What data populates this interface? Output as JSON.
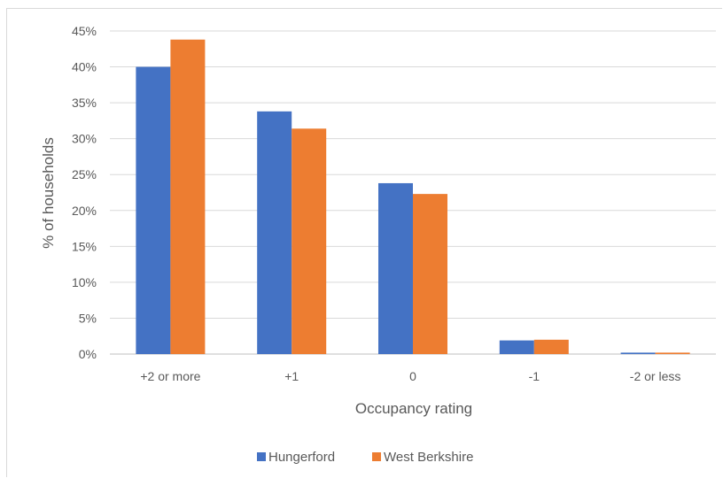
{
  "chart_data": {
    "type": "bar",
    "categories": [
      "+2 or more",
      "+1",
      "0",
      "-1",
      "-2 or less"
    ],
    "series": [
      {
        "name": "Hungerford",
        "values": [
          40.0,
          33.8,
          23.8,
          1.9,
          0.2
        ],
        "color": "#4472c4"
      },
      {
        "name": "West Berkshire",
        "values": [
          43.8,
          31.4,
          22.3,
          2.0,
          0.2
        ],
        "color": "#ed7d31"
      }
    ],
    "xlabel": "Occupancy rating",
    "ylabel": "% of households",
    "ylim": [
      0,
      45
    ],
    "yticks": [
      0,
      5,
      10,
      15,
      20,
      25,
      30,
      35,
      40,
      45
    ],
    "ytick_suffix": "%",
    "grid": true,
    "legend_position": "bottom"
  }
}
